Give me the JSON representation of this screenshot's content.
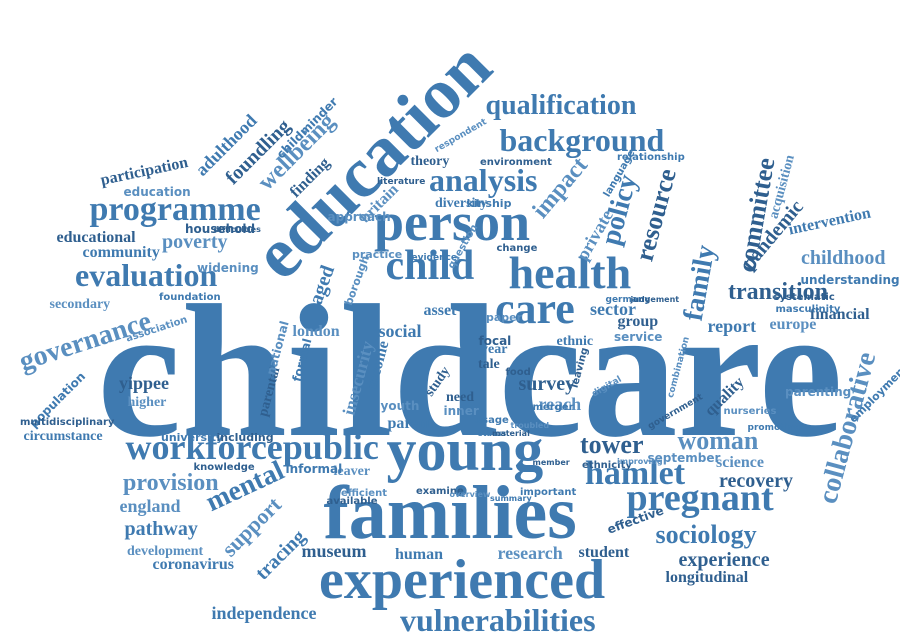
{
  "colors": {
    "primary": "#3f7ab0",
    "dark": "#2f5f8f",
    "light": "#5a8fc0",
    "background": "#ffffff"
  },
  "words": [
    "childcare",
    "families",
    "education",
    "experienced",
    "young",
    "person",
    "health",
    "child",
    "care",
    "workforcepublic",
    "vulnerabilities",
    "pregnant",
    "hamlet",
    "tower",
    "woman",
    "programme",
    "evaluation",
    "background",
    "qualification",
    "analysis",
    "collaborative",
    "family",
    "committee",
    "governance",
    "mental",
    "transition",
    "childhood",
    "sociology",
    "experience",
    "provision",
    "independence",
    "museum",
    "research",
    "human",
    "student",
    "support",
    "coronavirus",
    "recovery",
    "england",
    "pathway",
    "foundling",
    "wellbeing",
    "policy",
    "resource",
    "impact",
    "adulthood",
    "participation",
    "poverty",
    "community",
    "educational",
    "secondary",
    "population",
    "yippee",
    "higher",
    "circumstance",
    "multidisciplinary",
    "development",
    "tracing",
    "longitudinal",
    "science",
    "intervention",
    "financial",
    "europe",
    "report",
    "quality",
    "parenting",
    "employment",
    "pandemic",
    "acquisition",
    "understanding",
    "household",
    "widening",
    "aged",
    "finding",
    "britain",
    "diversity",
    "theory",
    "london",
    "social",
    "survey",
    "reach",
    "sector",
    "group",
    "service",
    "parent",
    "need",
    "inner",
    "year",
    "tale",
    "insecurity",
    "income",
    "study",
    "youth",
    "asset",
    "focal",
    "private",
    "language",
    "effective",
    "association",
    "university",
    "including",
    "leaver",
    "informal",
    "examine",
    "efficient",
    "important",
    "ethnicity",
    "september",
    "childminder",
    "difficulties",
    "approach",
    "relationship",
    "environment",
    "education",
    "foundation",
    "knowledge",
    "borough",
    "ethnic",
    "food",
    "paper",
    "merger",
    "parental",
    "national",
    "formal",
    "available",
    "nurseries",
    "masculinity",
    "systematic",
    "combination",
    "promoting",
    "government",
    "practice",
    "evidence",
    "literature",
    "respondent",
    "kinship",
    "change",
    "question",
    "germany",
    "judgement",
    "digital",
    "usage",
    "leaving",
    "troubled",
    "status",
    "material",
    "overview",
    "summary",
    "member",
    "improving"
  ]
}
